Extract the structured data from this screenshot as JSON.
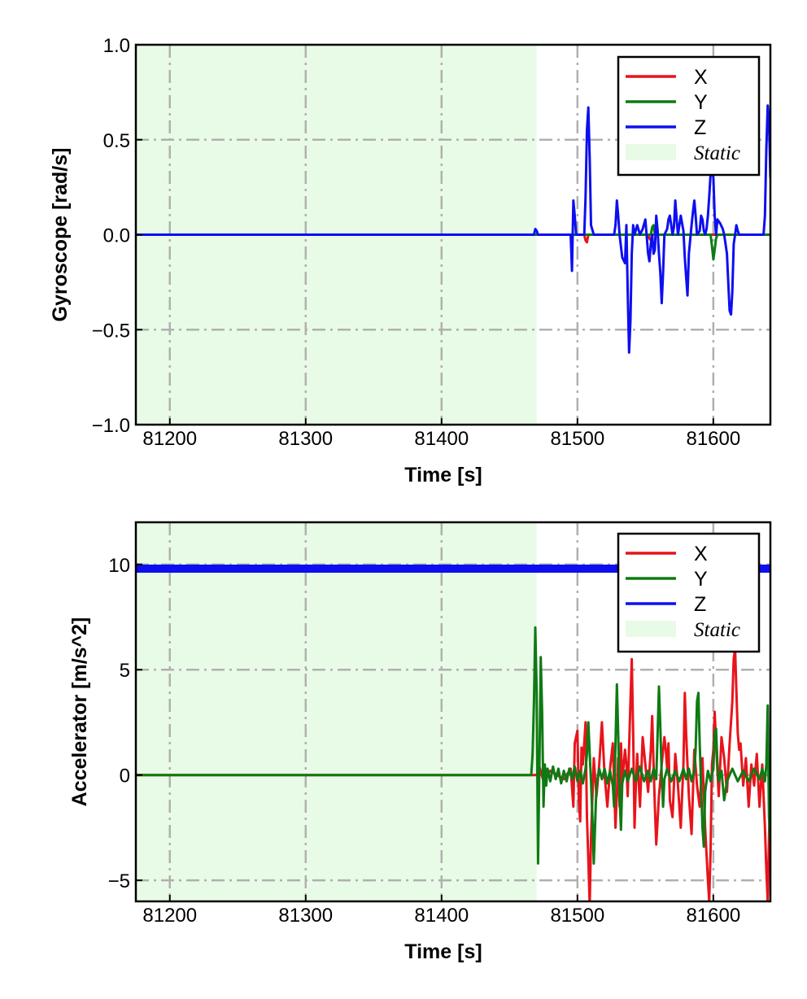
{
  "colors": {
    "X": "#e8141b",
    "Y": "#0f7a14",
    "Z": "#0d0ff0",
    "static_fill": "#e8fbe6",
    "grid": "#b0b0b0"
  },
  "chart_data": [
    {
      "type": "line",
      "xlabel": "Time [s]",
      "ylabel": "Gyroscope [rad/s]",
      "xlim": [
        81175,
        81642
      ],
      "ylim": [
        -1.0,
        1.0
      ],
      "xticks": [
        81200,
        81300,
        81400,
        81500,
        81600
      ],
      "xtick_labels": [
        "81200",
        "81300",
        "81400",
        "81500",
        "81600"
      ],
      "yticks": [
        -1.0,
        -0.5,
        0.0,
        0.5,
        1.0
      ],
      "ytick_labels": [
        "−1.0",
        "−0.5",
        "0.0",
        "0.5",
        "1.0"
      ],
      "grid": true,
      "legend_position": "top-right",
      "static_span": [
        81175,
        81470
      ],
      "legend": [
        {
          "label": "X",
          "kind": "line",
          "color_key": "X"
        },
        {
          "label": "Y",
          "kind": "line",
          "color_key": "Y"
        },
        {
          "label": "Z",
          "kind": "line",
          "color_key": "Z"
        },
        {
          "label": "Static",
          "kind": "patch",
          "color_key": "static_fill"
        }
      ],
      "series": [
        {
          "name": "X",
          "color_key": "X",
          "stroke": 3,
          "x": [
            81175,
            81505,
            81506,
            81507,
            81508,
            81552,
            81553,
            81554,
            81555,
            81642
          ],
          "y": [
            0,
            0,
            -0.03,
            -0.04,
            0,
            0,
            -0.02,
            -0.03,
            0,
            0
          ]
        },
        {
          "name": "Y",
          "color_key": "Y",
          "stroke": 3,
          "x": [
            81175,
            81554,
            81555,
            81556,
            81557,
            81598,
            81599,
            81600,
            81601,
            81602,
            81603,
            81642
          ],
          "y": [
            0,
            0,
            0.04,
            0.05,
            0,
            0,
            -0.06,
            -0.13,
            -0.08,
            -0.02,
            0,
            0
          ]
        },
        {
          "name": "Z",
          "color_key": "Z",
          "stroke": 3,
          "x": [
            81175,
            81468,
            81469,
            81470,
            81471,
            81495,
            81496,
            81497,
            81498,
            81499,
            81505,
            81506,
            81507,
            81508,
            81509,
            81510,
            81512,
            81520,
            81527,
            81528,
            81529,
            81530,
            81531,
            81533,
            81535,
            81536,
            81537,
            81538,
            81539,
            81540,
            81541,
            81542,
            81544,
            81546,
            81548,
            81550,
            81552,
            81553,
            81554,
            81555,
            81556,
            81557,
            81558,
            81559,
            81560,
            81561,
            81562,
            81563,
            81564,
            81566,
            81567,
            81568,
            81569,
            81570,
            81571,
            81572,
            81573,
            81574,
            81576,
            81578,
            81579,
            81580,
            81581,
            81582,
            81584,
            81585,
            81586,
            81587,
            81588,
            81590,
            81591,
            81592,
            81593,
            81594,
            81595,
            81596,
            81597,
            81598,
            81599,
            81600,
            81601,
            81602,
            81603,
            81605,
            81607,
            81608,
            81610,
            81611,
            81612,
            81613,
            81614,
            81615,
            81616,
            81617,
            81618,
            81619,
            81620,
            81622,
            81625,
            81630,
            81635,
            81637,
            81638,
            81639,
            81640,
            81641,
            81642
          ],
          "y": [
            0,
            0,
            0.03,
            0.02,
            0,
            0,
            -0.19,
            0.18,
            0.1,
            0,
            0,
            0.2,
            0.55,
            0.67,
            0.4,
            0.05,
            0,
            0,
            0,
            0.05,
            0.18,
            0.1,
            0,
            -0.12,
            -0.15,
            0.05,
            -0.3,
            -0.62,
            -0.45,
            -0.1,
            0.05,
            0,
            0.05,
            0,
            0.03,
            0.08,
            -0.1,
            -0.14,
            -0.05,
            0,
            -0.1,
            -0.08,
            0.1,
            0.02,
            -0.1,
            -0.2,
            -0.36,
            -0.2,
            0,
            0.03,
            0.08,
            0.1,
            0.05,
            0,
            0.04,
            0.18,
            0.08,
            0,
            0.1,
            0.02,
            -0.12,
            -0.22,
            -0.32,
            -0.1,
            0.05,
            0.12,
            0.18,
            0.1,
            0,
            0.02,
            0.1,
            0.08,
            0.02,
            0,
            0.03,
            0.1,
            0.2,
            0.32,
            0.35,
            0.3,
            0.1,
            0,
            0.08,
            0.06,
            0.03,
            0,
            -0.1,
            -0.25,
            -0.4,
            -0.42,
            -0.3,
            -0.05,
            0,
            0.05,
            0.02,
            0,
            0,
            0,
            0,
            0,
            0,
            0,
            0.1,
            0.45,
            0.68,
            0.6,
            0.3
          ]
        }
      ]
    },
    {
      "type": "line",
      "xlabel": "Time [s]",
      "ylabel": "Accelerator [m/s^2]",
      "xlim": [
        81175,
        81642
      ],
      "ylim": [
        -6,
        12
      ],
      "xticks": [
        81200,
        81300,
        81400,
        81500,
        81600
      ],
      "xtick_labels": [
        "81200",
        "81300",
        "81400",
        "81500",
        "81600"
      ],
      "yticks": [
        -5,
        0,
        5,
        10
      ],
      "ytick_labels": [
        "−5",
        "0",
        "5",
        "10"
      ],
      "grid": true,
      "legend_position": "top-right",
      "static_span": [
        81175,
        81470
      ],
      "legend": [
        {
          "label": "X",
          "kind": "line",
          "color_key": "X"
        },
        {
          "label": "Y",
          "kind": "line",
          "color_key": "Y"
        },
        {
          "label": "Z",
          "kind": "line",
          "color_key": "Z"
        },
        {
          "label": "Static",
          "kind": "patch",
          "color_key": "static_fill"
        }
      ],
      "series": [
        {
          "name": "Z",
          "color_key": "Z",
          "stroke": 10,
          "x": [
            81175,
            81642
          ],
          "y": [
            9.8,
            9.8
          ]
        },
        {
          "name": "X",
          "color_key": "X",
          "stroke": 3,
          "x": [
            81175,
            81470,
            81472,
            81475,
            81480,
            81490,
            81495,
            81497,
            81498,
            81500,
            81501,
            81502,
            81503,
            81504,
            81506,
            81507,
            81508,
            81509,
            81510,
            81512,
            81514,
            81516,
            81518,
            81520,
            81522,
            81524,
            81526,
            81528,
            81530,
            81531,
            81532,
            81533,
            81535,
            81536,
            81537,
            81538,
            81539,
            81540,
            81541,
            81542,
            81543,
            81544,
            81546,
            81548,
            81550,
            81552,
            81554,
            81555,
            81556,
            81557,
            81558,
            81560,
            81562,
            81564,
            81565,
            81566,
            81567,
            81568,
            81570,
            81572,
            81574,
            81576,
            81578,
            81579,
            81580,
            81582,
            81584,
            81586,
            81588,
            81590,
            81592,
            81594,
            81596,
            81597,
            81598,
            81599,
            81600,
            81601,
            81602,
            81604,
            81606,
            81608,
            81610,
            81612,
            81614,
            81615,
            81616,
            81617,
            81618,
            81619,
            81620,
            81622,
            81624,
            81626,
            81628,
            81630,
            81632,
            81634,
            81636,
            81638,
            81639,
            81640,
            81641,
            81642
          ],
          "y": [
            0,
            0,
            0.4,
            -0.3,
            0.2,
            -0.2,
            0.3,
            -1.5,
            1.5,
            2.1,
            -1.2,
            -2.2,
            1.3,
            0.5,
            2.5,
            -2,
            -4,
            -6.2,
            -3,
            0.8,
            -1,
            0.5,
            2.5,
            0,
            -1.5,
            0.3,
            1.5,
            -2.5,
            0.8,
            -1.5,
            1.5,
            -0.3,
            1.2,
            0.5,
            -1,
            1.3,
            3.5,
            5.5,
            2,
            -2.5,
            -0.5,
            1,
            -1.5,
            1.8,
            0.5,
            -0.8,
            1.2,
            2.8,
            0.5,
            -1.5,
            -3.3,
            -1,
            0.5,
            1.8,
            1.2,
            0.3,
            1.5,
            -1.2,
            -2,
            1,
            -0.5,
            -2.5,
            0.5,
            3.9,
            2,
            -1,
            -2.8,
            1.2,
            -0.5,
            -1.5,
            0.8,
            -2.5,
            -5,
            -6,
            -3.5,
            0.5,
            1.2,
            3,
            1.5,
            -1,
            1.8,
            0.8,
            -0.8,
            1.5,
            3.5,
            5.5,
            6,
            4,
            2,
            1.2,
            1.5,
            -0.5,
            0.8,
            -1.5,
            0.5,
            -0.5,
            1,
            -1.5,
            0.5,
            -2.5,
            -4.5,
            -6,
            -3,
            0.3
          ]
        },
        {
          "name": "Y",
          "color_key": "Y",
          "stroke": 3,
          "x": [
            81175,
            81466,
            81467,
            81468,
            81469,
            81470,
            81471,
            81472,
            81473,
            81474,
            81475,
            81476,
            81477,
            81478,
            81480,
            81482,
            81484,
            81486,
            81488,
            81490,
            81492,
            81494,
            81496,
            81498,
            81500,
            81502,
            81504,
            81506,
            81507,
            81508,
            81509,
            81510,
            81511,
            81512,
            81514,
            81516,
            81518,
            81520,
            81522,
            81524,
            81526,
            81527,
            81528,
            81529,
            81530,
            81531,
            81532,
            81533,
            81535,
            81537,
            81540,
            81543,
            81546,
            81549,
            81552,
            81554,
            81556,
            81558,
            81559,
            81560,
            81561,
            81562,
            81563,
            81564,
            81566,
            81569,
            81572,
            81575,
            81578,
            81580,
            81582,
            81584,
            81586,
            81587,
            81588,
            81589,
            81590,
            81591,
            81592,
            81593,
            81594,
            81596,
            81598,
            81600,
            81601,
            81602,
            81603,
            81604,
            81606,
            81608,
            81610,
            81614,
            81618,
            81622,
            81626,
            81630,
            81634,
            81636,
            81638,
            81639,
            81640,
            81641,
            81642
          ],
          "y": [
            0,
            0,
            1,
            3.5,
            7,
            4,
            -4.2,
            0.5,
            5.6,
            3,
            -1.5,
            0.5,
            -0.5,
            0.3,
            -0.3,
            0.4,
            -0.2,
            0.3,
            -0.4,
            0.2,
            -0.3,
            0.3,
            -0.2,
            0.4,
            -0.3,
            0.2,
            -0.4,
            0.3,
            1,
            2.5,
            1,
            -0.3,
            -2,
            -4.2,
            -0.5,
            0.3,
            -0.2,
            0.3,
            -0.4,
            0.2,
            -0.5,
            -1.5,
            1.5,
            4.3,
            2,
            -1,
            -2.6,
            -0.4,
            0.2,
            -0.3,
            0.3,
            -0.3,
            0.4,
            -0.3,
            0.2,
            -0.3,
            0.3,
            -0.2,
            2,
            4.2,
            2.3,
            0,
            -1.5,
            -0.2,
            0.3,
            -0.3,
            0.2,
            -0.3,
            0.3,
            -0.2,
            0.3,
            -0.3,
            0.2,
            1.2,
            3.5,
            3.9,
            1.5,
            -0.5,
            -2.5,
            -3.4,
            -0.8,
            0.2,
            -0.3,
            0.3,
            2,
            2.2,
            0.5,
            -0.3,
            0.2,
            -1.2,
            -0.3,
            0.3,
            -0.3,
            0.2,
            -0.3,
            0.3,
            -0.2,
            0.3,
            -0.3,
            0.5,
            3.3,
            -2,
            -3.3
          ]
        }
      ]
    }
  ]
}
